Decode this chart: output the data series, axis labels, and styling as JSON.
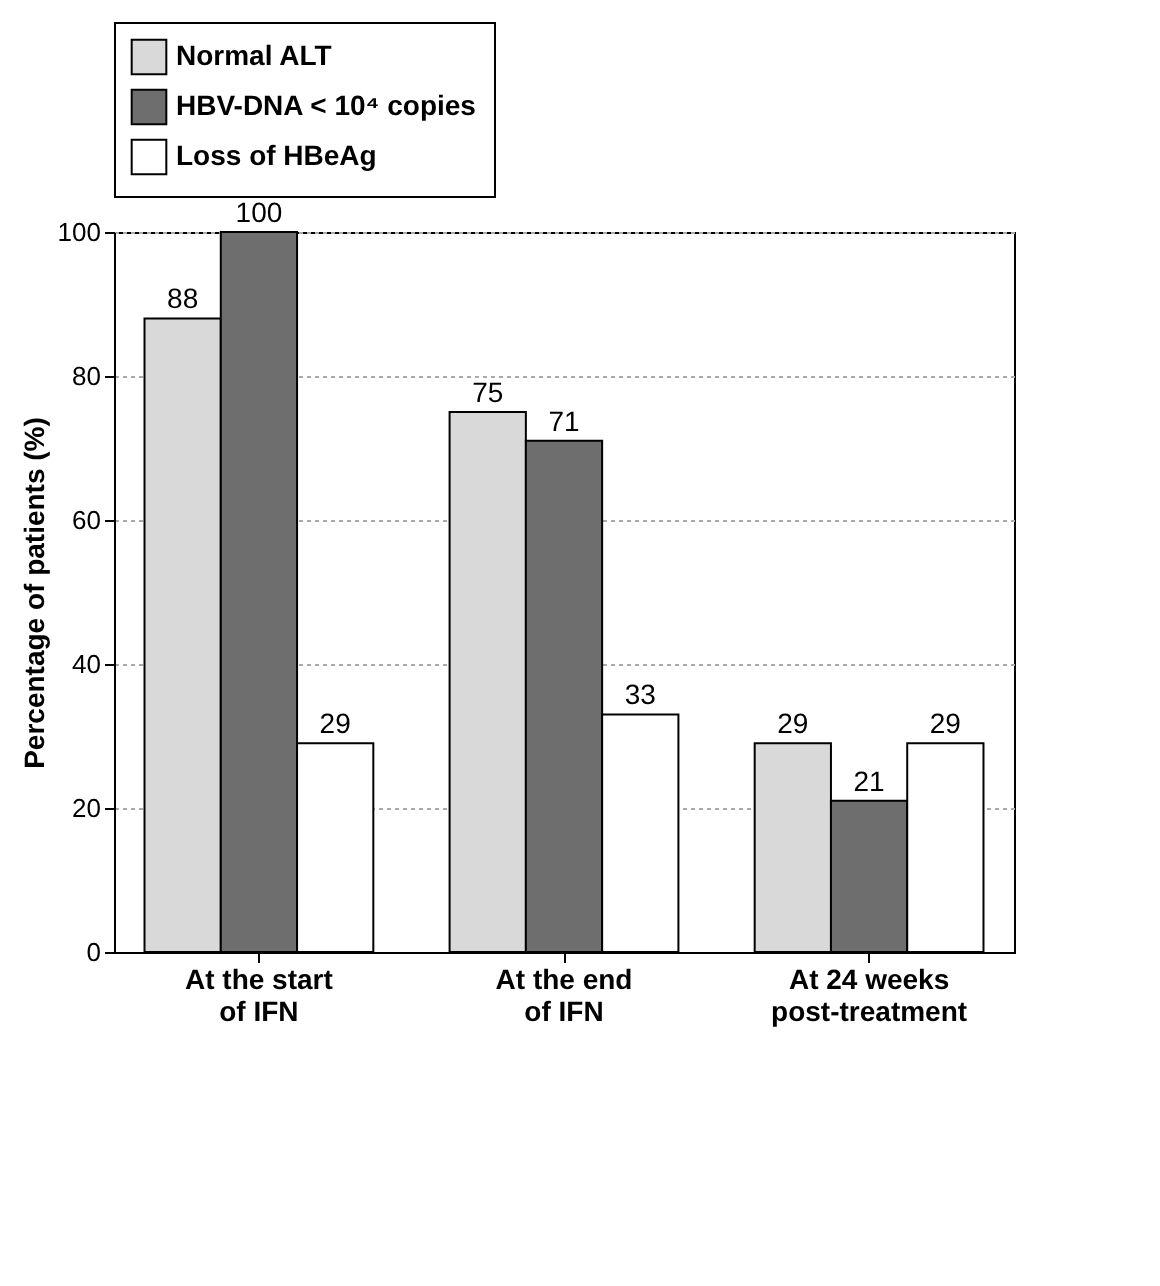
{
  "chart_data": {
    "type": "bar",
    "ylabel": "Percentage of patients (%)",
    "categories": [
      "At the start\nof IFN",
      "At the end\nof  IFN",
      "At 24 weeks\npost-treatment"
    ],
    "series": [
      {
        "name": "Normal ALT",
        "color": "#d9d9d9",
        "values": [
          88,
          75,
          29
        ]
      },
      {
        "name": "HBV-DNA < 10⁴ copies",
        "color": "#6e6e6e",
        "values": [
          100,
          71,
          21
        ]
      },
      {
        "name": "Loss of HBeAg",
        "color": "#ffffff",
        "values": [
          29,
          33,
          29
        ]
      }
    ],
    "ylim": [
      0,
      100
    ],
    "yticks": [
      0,
      20,
      40,
      60,
      80,
      100
    ],
    "grid": "y",
    "legend": "top",
    "data_labels": true
  }
}
